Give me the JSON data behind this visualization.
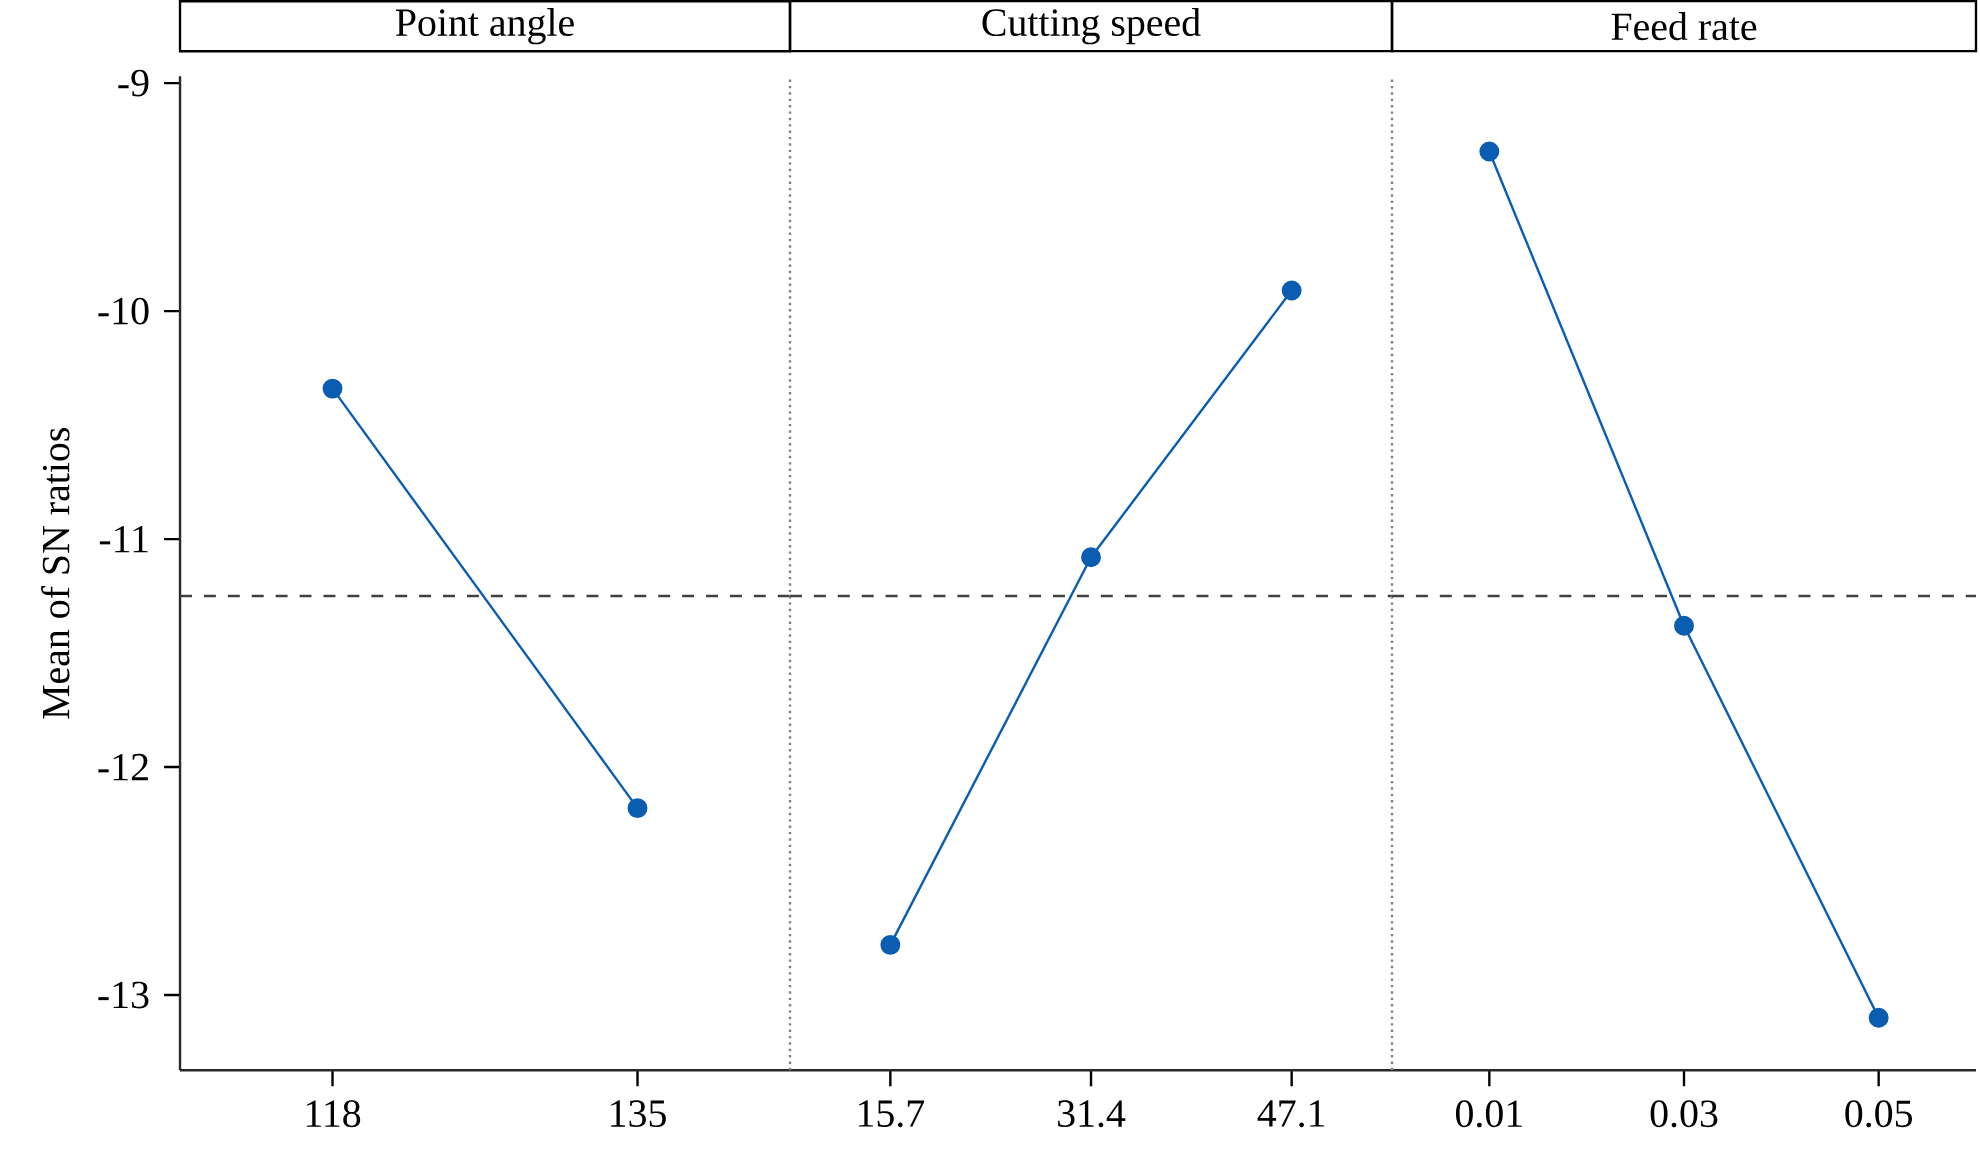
{
  "chart_data": [
    {
      "type": "line",
      "title": "Point angle",
      "ylabel": "Mean of SN ratios",
      "categories": [
        "118",
        "135"
      ],
      "values": [
        -10.34,
        -12.18
      ],
      "color": "#0a5db0",
      "marker": "circle",
      "line_style": "solid",
      "ylim": [
        -13.33,
        -8.97
      ],
      "yticks": [
        -13,
        -12,
        -11,
        -10,
        -9
      ],
      "ref_lines": [
        {
          "axis": "y",
          "value": -11.25,
          "line_style": "dashed",
          "color": "#404040"
        }
      ]
    },
    {
      "type": "line",
      "title": "Cutting speed",
      "categories": [
        "15.7",
        "31.4",
        "47.1"
      ],
      "values": [
        -12.78,
        -11.08,
        -9.91
      ],
      "color": "#0a5db0",
      "marker": "circle",
      "line_style": "solid",
      "ylim": [
        -13.33,
        -8.97
      ],
      "yticks": [
        -13,
        -12,
        -11,
        -10,
        -9
      ],
      "tick_labels": "x",
      "ref_lines": [
        {
          "axis": "y",
          "value": -11.25,
          "line_style": "dashed",
          "color": "#404040"
        }
      ]
    },
    {
      "type": "line",
      "title": "Feed rate",
      "categories": [
        "0.01",
        "0.03",
        "0.05"
      ],
      "values": [
        -9.3,
        -11.38,
        -13.1
      ],
      "color": "#0a5db0",
      "marker": "circle",
      "line_style": "solid",
      "ylim": [
        -13.33,
        -8.97
      ],
      "yticks": [
        -13,
        -12,
        -11,
        -10,
        -9
      ],
      "tick_labels": "x",
      "ref_lines": [
        {
          "axis": "y",
          "value": -11.25,
          "line_style": "dashed",
          "color": "#404040"
        }
      ]
    }
  ]
}
